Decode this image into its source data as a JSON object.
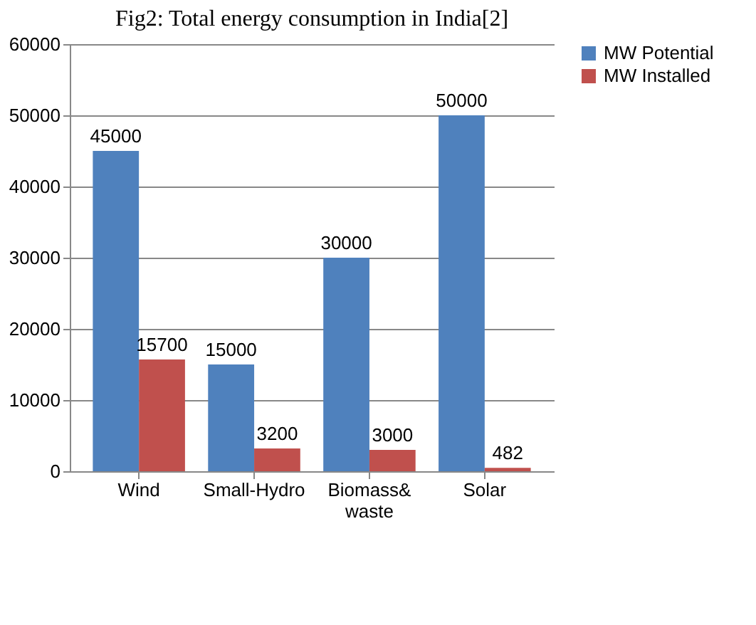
{
  "chart_data": {
    "type": "bar",
    "title": "Fig2: Total energy consumption in India[2]",
    "categories": [
      "Wind",
      "Small-Hydro",
      "Biomass& waste",
      "Solar"
    ],
    "series": [
      {
        "name": "MW Potential",
        "color": "#4f81bd",
        "values": [
          45000,
          15000,
          30000,
          50000
        ]
      },
      {
        "name": "MW Installed",
        "color": "#c0504d",
        "values": [
          15700,
          3200,
          3000,
          482
        ]
      }
    ],
    "ylim": [
      0,
      60000
    ],
    "yticks": [
      0,
      10000,
      20000,
      30000,
      40000,
      50000,
      60000
    ],
    "grid": "y",
    "legend": "right",
    "data_labels": true
  }
}
